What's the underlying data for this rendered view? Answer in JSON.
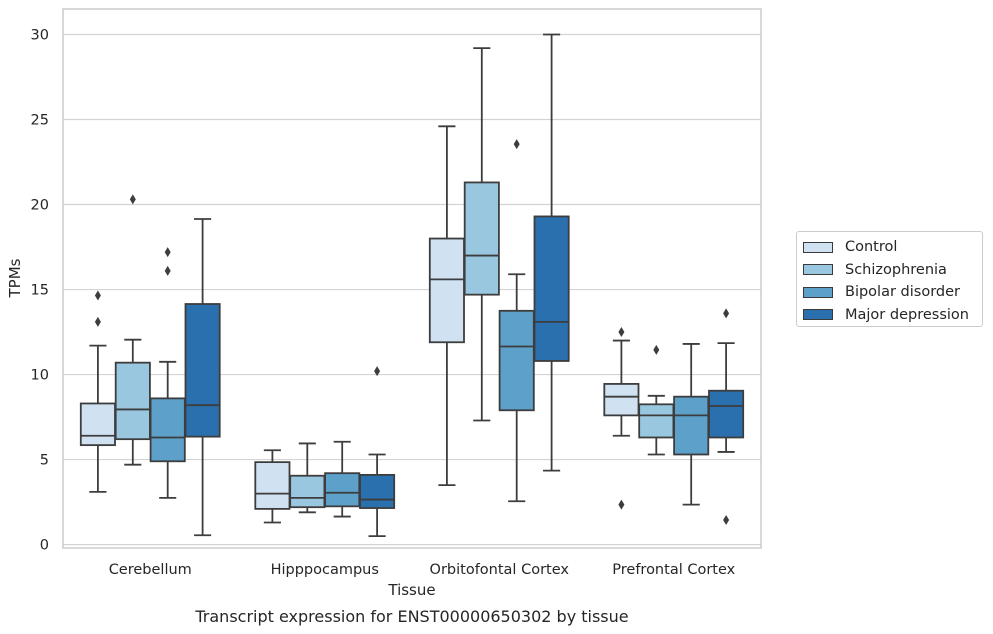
{
  "chart_data": {
    "type": "box",
    "title": "Transcript expression for ENST00000650302 by tissue",
    "xlabel": "Tissue",
    "ylabel": "TPMs",
    "ylim": [
      -0.2,
      31.5
    ],
    "yticks": [
      0,
      5,
      10,
      15,
      20,
      25,
      30
    ],
    "grid": "horizontal",
    "legend_position": "right",
    "categories": [
      "Cerebellum",
      "Hipppocampus",
      "Orbitofontal Cortex",
      "Prefrontal Cortex"
    ],
    "series": [
      {
        "name": "Control",
        "color": "#d0e1f2",
        "boxes": [
          {
            "whislo": 3.1,
            "q1": 5.85,
            "med": 6.4,
            "q3": 8.3,
            "whishi": 11.7,
            "fliers": [
              13.1,
              14.65
            ]
          },
          {
            "whislo": 1.3,
            "q1": 2.1,
            "med": 3.0,
            "q3": 4.85,
            "whishi": 5.55,
            "fliers": []
          },
          {
            "whislo": 3.5,
            "q1": 11.9,
            "med": 15.6,
            "q3": 18.0,
            "whishi": 24.6,
            "fliers": []
          },
          {
            "whislo": 6.4,
            "q1": 7.6,
            "med": 8.7,
            "q3": 9.45,
            "whishi": 12.0,
            "fliers": [
              2.35,
              12.5
            ]
          }
        ]
      },
      {
        "name": "Schizophrenia",
        "color": "#9ac7e0",
        "boxes": [
          {
            "whislo": 4.7,
            "q1": 6.2,
            "med": 7.95,
            "q3": 10.7,
            "whishi": 12.05,
            "fliers": [
              20.3
            ]
          },
          {
            "whislo": 1.9,
            "q1": 2.2,
            "med": 2.75,
            "q3": 4.05,
            "whishi": 5.95,
            "fliers": []
          },
          {
            "whislo": 7.3,
            "q1": 14.7,
            "med": 17.0,
            "q3": 21.3,
            "whishi": 29.2,
            "fliers": []
          },
          {
            "whislo": 5.3,
            "q1": 6.3,
            "med": 7.6,
            "q3": 8.25,
            "whishi": 8.75,
            "fliers": [
              11.45
            ]
          }
        ]
      },
      {
        "name": "Bipolar disorder",
        "color": "#5da0ca",
        "boxes": [
          {
            "whislo": 2.75,
            "q1": 4.9,
            "med": 6.3,
            "q3": 8.6,
            "whishi": 10.75,
            "fliers": [
              16.1,
              17.2
            ]
          },
          {
            "whislo": 1.65,
            "q1": 2.25,
            "med": 3.05,
            "q3": 4.2,
            "whishi": 6.05,
            "fliers": []
          },
          {
            "whislo": 2.55,
            "q1": 7.9,
            "med": 11.65,
            "q3": 13.75,
            "whishi": 15.9,
            "fliers": [
              23.55
            ]
          },
          {
            "whislo": 2.35,
            "q1": 5.3,
            "med": 7.6,
            "q3": 8.7,
            "whishi": 11.8,
            "fliers": []
          }
        ]
      },
      {
        "name": "Major depression",
        "color": "#2b70ae",
        "boxes": [
          {
            "whislo": 0.55,
            "q1": 6.35,
            "med": 8.2,
            "q3": 14.15,
            "whishi": 19.15,
            "fliers": []
          },
          {
            "whislo": 0.5,
            "q1": 2.15,
            "med": 2.65,
            "q3": 4.1,
            "whishi": 5.3,
            "fliers": [
              10.2
            ]
          },
          {
            "whislo": 4.35,
            "q1": 10.8,
            "med": 13.1,
            "q3": 19.3,
            "whishi": 30.0,
            "fliers": []
          },
          {
            "whislo": 5.45,
            "q1": 6.3,
            "med": 8.15,
            "q3": 9.05,
            "whishi": 11.85,
            "fliers": [
              1.45,
              13.6
            ]
          }
        ]
      }
    ]
  }
}
